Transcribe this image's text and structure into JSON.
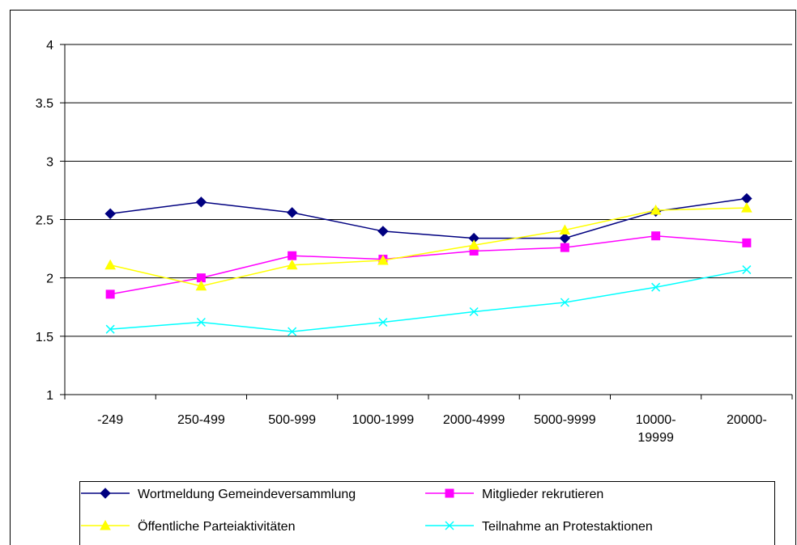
{
  "chart_data": {
    "type": "line",
    "categories": [
      "-249",
      "250-499",
      "500-999",
      "1000-1999",
      "2000-4999",
      "5000-9999",
      "10000-\n19999",
      "20000-"
    ],
    "ylim": [
      1,
      4
    ],
    "yticks": [
      1,
      1.5,
      2,
      2.5,
      3,
      3.5,
      4
    ],
    "grid": true,
    "series": [
      {
        "name": "Wortmeldung Gemeindeversammlung",
        "color": "#000080",
        "marker": "diamond",
        "values": [
          2.55,
          2.65,
          2.56,
          2.4,
          2.34,
          2.34,
          2.57,
          2.68
        ]
      },
      {
        "name": "Mitglieder rekrutieren",
        "color": "#ff00ff",
        "marker": "square",
        "values": [
          1.86,
          2.0,
          2.19,
          2.16,
          2.23,
          2.26,
          2.36,
          2.3
        ]
      },
      {
        "name": "Öffentliche Parteiaktivitäten",
        "color": "#ffff00",
        "marker": "triangle",
        "values": [
          2.11,
          1.93,
          2.11,
          2.15,
          2.28,
          2.41,
          2.58,
          2.6
        ]
      },
      {
        "name": "Teilnahme an Protestaktionen",
        "color": "#00ffff",
        "marker": "x",
        "values": [
          1.56,
          1.62,
          1.54,
          1.62,
          1.71,
          1.79,
          1.92,
          2.07
        ]
      }
    ]
  }
}
